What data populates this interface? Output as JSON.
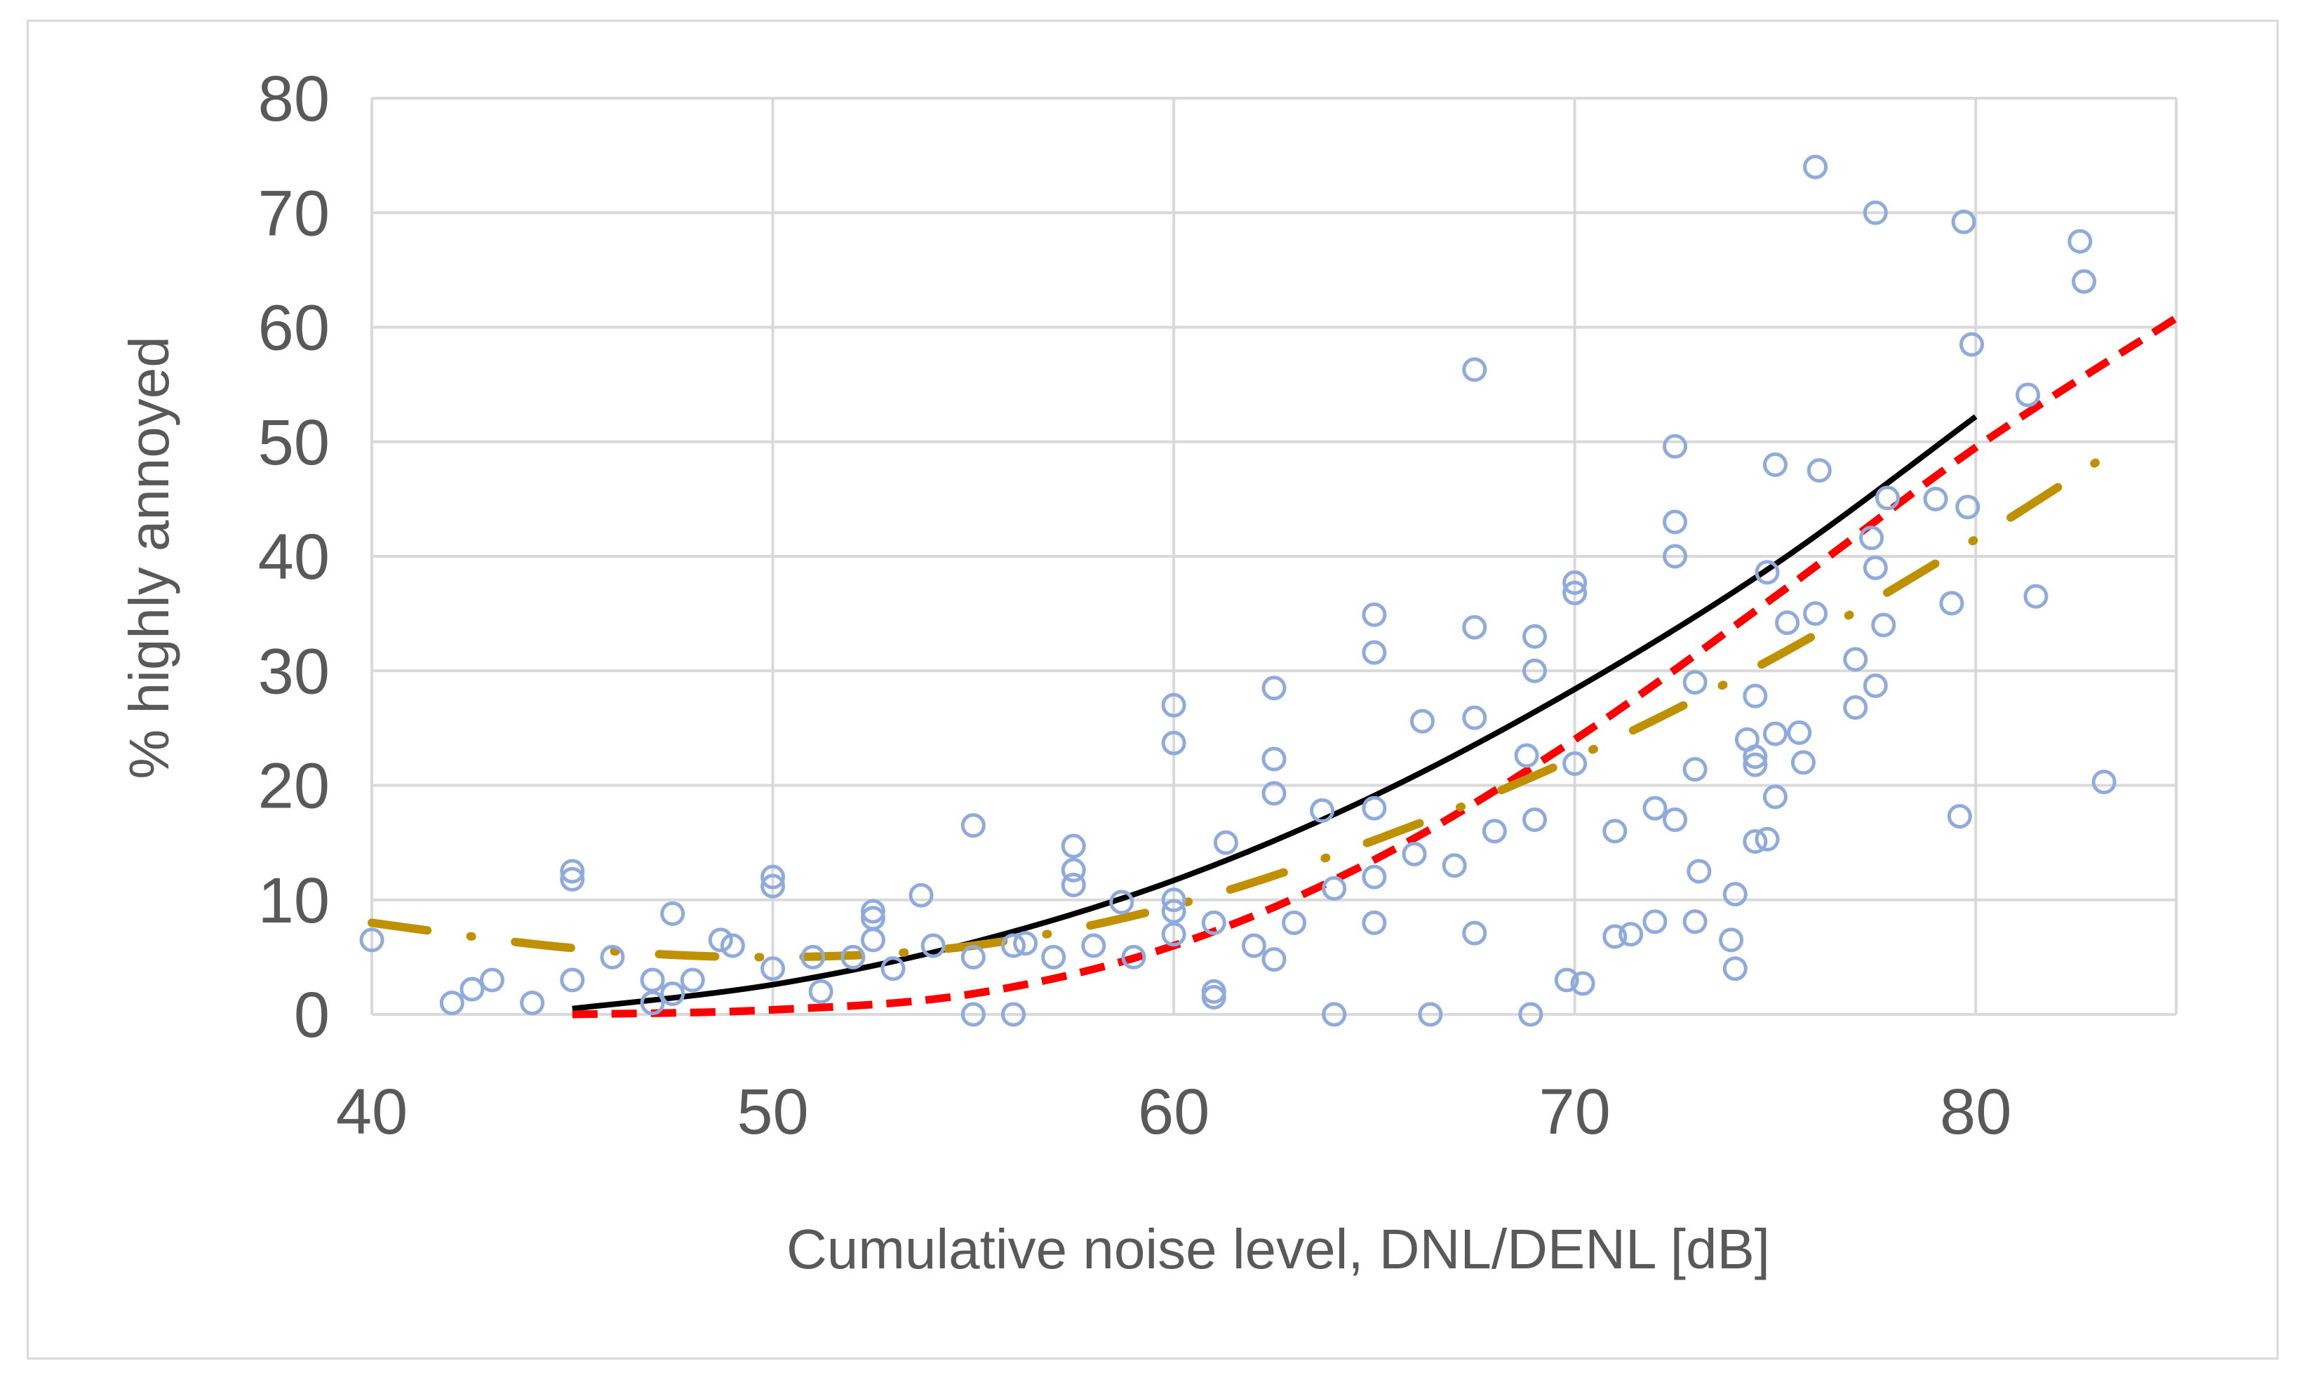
{
  "chart_data": {
    "type": "scatter",
    "title": "",
    "xlabel": "Cumulative noise level, DNL/DENL [dB]",
    "ylabel": "% highly annoyed",
    "xlim": [
      40,
      85
    ],
    "ylim": [
      0,
      80
    ],
    "x_ticks": [
      40,
      50,
      60,
      70,
      80
    ],
    "y_ticks": [
      0,
      10,
      20,
      30,
      40,
      50,
      60,
      70,
      80
    ],
    "grid": true,
    "legend": "none",
    "colors": {
      "grid": "#d9d9d9",
      "tick_text": "#595959",
      "scatter": "#8faadc",
      "black_curve": "#000000",
      "red_curve": "#ff0000",
      "gold_curve": "#bf9000"
    },
    "scatter_points": [
      [
        40.0,
        6.5
      ],
      [
        42.0,
        1.0
      ],
      [
        42.5,
        2.2
      ],
      [
        43.0,
        3.0
      ],
      [
        44.0,
        1.0
      ],
      [
        45.0,
        12.5
      ],
      [
        45.0,
        11.8
      ],
      [
        45.0,
        3.0
      ],
      [
        46.0,
        5.0
      ],
      [
        47.0,
        3.0
      ],
      [
        47.0,
        1.0
      ],
      [
        47.5,
        8.8
      ],
      [
        47.5,
        1.8
      ],
      [
        48.0,
        3.0
      ],
      [
        48.7,
        6.5
      ],
      [
        49.0,
        6.0
      ],
      [
        50.0,
        12.0
      ],
      [
        50.0,
        11.2
      ],
      [
        50.0,
        4.0
      ],
      [
        51.0,
        5.0
      ],
      [
        51.2,
        2.0
      ],
      [
        52.0,
        5.0
      ],
      [
        52.5,
        9.0
      ],
      [
        52.5,
        8.4
      ],
      [
        52.5,
        6.5
      ],
      [
        53.0,
        4.0
      ],
      [
        53.7,
        10.4
      ],
      [
        54.0,
        6.0
      ],
      [
        55.0,
        16.5
      ],
      [
        55.0,
        5.0
      ],
      [
        55.0,
        0.0
      ],
      [
        56.0,
        0.0
      ],
      [
        56.0,
        6.0
      ],
      [
        56.3,
        6.2
      ],
      [
        57.0,
        5.0
      ],
      [
        57.5,
        14.7
      ],
      [
        57.5,
        12.6
      ],
      [
        57.5,
        11.3
      ],
      [
        58.0,
        6.0
      ],
      [
        58.7,
        9.8
      ],
      [
        59.0,
        5.0
      ],
      [
        60.0,
        27.0
      ],
      [
        60.0,
        23.7
      ],
      [
        60.0,
        10.0
      ],
      [
        60.0,
        9.0
      ],
      [
        60.0,
        7.0
      ],
      [
        61.0,
        2.0
      ],
      [
        61.0,
        1.5
      ],
      [
        61.0,
        8.0
      ],
      [
        61.3,
        15.0
      ],
      [
        62.0,
        6.0
      ],
      [
        62.5,
        28.5
      ],
      [
        62.5,
        22.3
      ],
      [
        62.5,
        19.3
      ],
      [
        62.5,
        4.8
      ],
      [
        63.0,
        8.0
      ],
      [
        63.7,
        17.8
      ],
      [
        64.0,
        11.0
      ],
      [
        64.0,
        0.0
      ],
      [
        65.0,
        34.9
      ],
      [
        65.0,
        31.6
      ],
      [
        65.0,
        18.0
      ],
      [
        65.0,
        12.0
      ],
      [
        65.0,
        8.0
      ],
      [
        66.0,
        14.0
      ],
      [
        66.2,
        25.6
      ],
      [
        66.4,
        0.0
      ],
      [
        67.0,
        13.0
      ],
      [
        67.5,
        56.3
      ],
      [
        67.5,
        33.8
      ],
      [
        67.5,
        25.9
      ],
      [
        67.5,
        7.1
      ],
      [
        68.0,
        16.0
      ],
      [
        68.8,
        22.6
      ],
      [
        68.9,
        0.0
      ],
      [
        69.0,
        33.0
      ],
      [
        69.0,
        30.0
      ],
      [
        69.0,
        17.0
      ],
      [
        69.8,
        3.0
      ],
      [
        70.0,
        37.7
      ],
      [
        70.0,
        36.8
      ],
      [
        70.0,
        21.9
      ],
      [
        70.2,
        2.7
      ],
      [
        71.0,
        16.0
      ],
      [
        71.0,
        6.8
      ],
      [
        71.4,
        7.0
      ],
      [
        72.0,
        18.0
      ],
      [
        72.0,
        8.1
      ],
      [
        72.5,
        49.6
      ],
      [
        72.5,
        43.0
      ],
      [
        72.5,
        40.0
      ],
      [
        72.5,
        17.0
      ],
      [
        73.0,
        29.0
      ],
      [
        73.0,
        21.4
      ],
      [
        73.0,
        8.1
      ],
      [
        73.1,
        12.5
      ],
      [
        73.9,
        6.5
      ],
      [
        74.0,
        10.5
      ],
      [
        74.0,
        4.0
      ],
      [
        74.3,
        24.0
      ],
      [
        74.5,
        27.8
      ],
      [
        74.5,
        22.5
      ],
      [
        74.5,
        21.8
      ],
      [
        74.5,
        15.1
      ],
      [
        74.8,
        38.6
      ],
      [
        74.8,
        15.3
      ],
      [
        75.0,
        48.0
      ],
      [
        75.0,
        24.5
      ],
      [
        75.0,
        19.0
      ],
      [
        75.3,
        34.2
      ],
      [
        75.6,
        24.6
      ],
      [
        75.7,
        22.0
      ],
      [
        76.0,
        74.0
      ],
      [
        76.0,
        35.0
      ],
      [
        76.1,
        47.5
      ],
      [
        77.0,
        31.0
      ],
      [
        77.0,
        26.8
      ],
      [
        77.4,
        41.6
      ],
      [
        77.5,
        70.0
      ],
      [
        77.5,
        39.0
      ],
      [
        77.5,
        28.7
      ],
      [
        77.7,
        34.0
      ],
      [
        77.8,
        45.1
      ],
      [
        79.0,
        45.0
      ],
      [
        79.4,
        35.9
      ],
      [
        79.6,
        17.3
      ],
      [
        79.7,
        69.2
      ],
      [
        79.8,
        44.3
      ],
      [
        79.9,
        58.5
      ],
      [
        81.3,
        54.1
      ],
      [
        81.5,
        36.5
      ],
      [
        82.6,
        67.5
      ],
      [
        82.7,
        64.0
      ],
      [
        83.2,
        20.3
      ]
    ],
    "series": [
      {
        "name": "black",
        "style": "solid",
        "x": [
          45,
          50,
          55,
          60,
          65,
          70,
          75,
          80
        ],
        "y": [
          0.5,
          2.6,
          6.3,
          11.7,
          19.1,
          28.4,
          39.3,
          52.2
        ]
      },
      {
        "name": "red",
        "style": "dashed",
        "x": [
          45,
          50,
          55,
          60,
          65,
          70,
          75,
          80,
          85
        ],
        "y": [
          0,
          0.4,
          1.8,
          6.0,
          13.5,
          24.0,
          36.5,
          49.5,
          60.8
        ]
      },
      {
        "name": "gold",
        "style": "dash-dot",
        "x": [
          40,
          45,
          50,
          55,
          60,
          65,
          70,
          75,
          80,
          83
        ],
        "y": [
          8.0,
          5.8,
          5.0,
          6.0,
          9.5,
          15.2,
          22.4,
          31.2,
          41.5,
          48.2
        ]
      }
    ]
  }
}
